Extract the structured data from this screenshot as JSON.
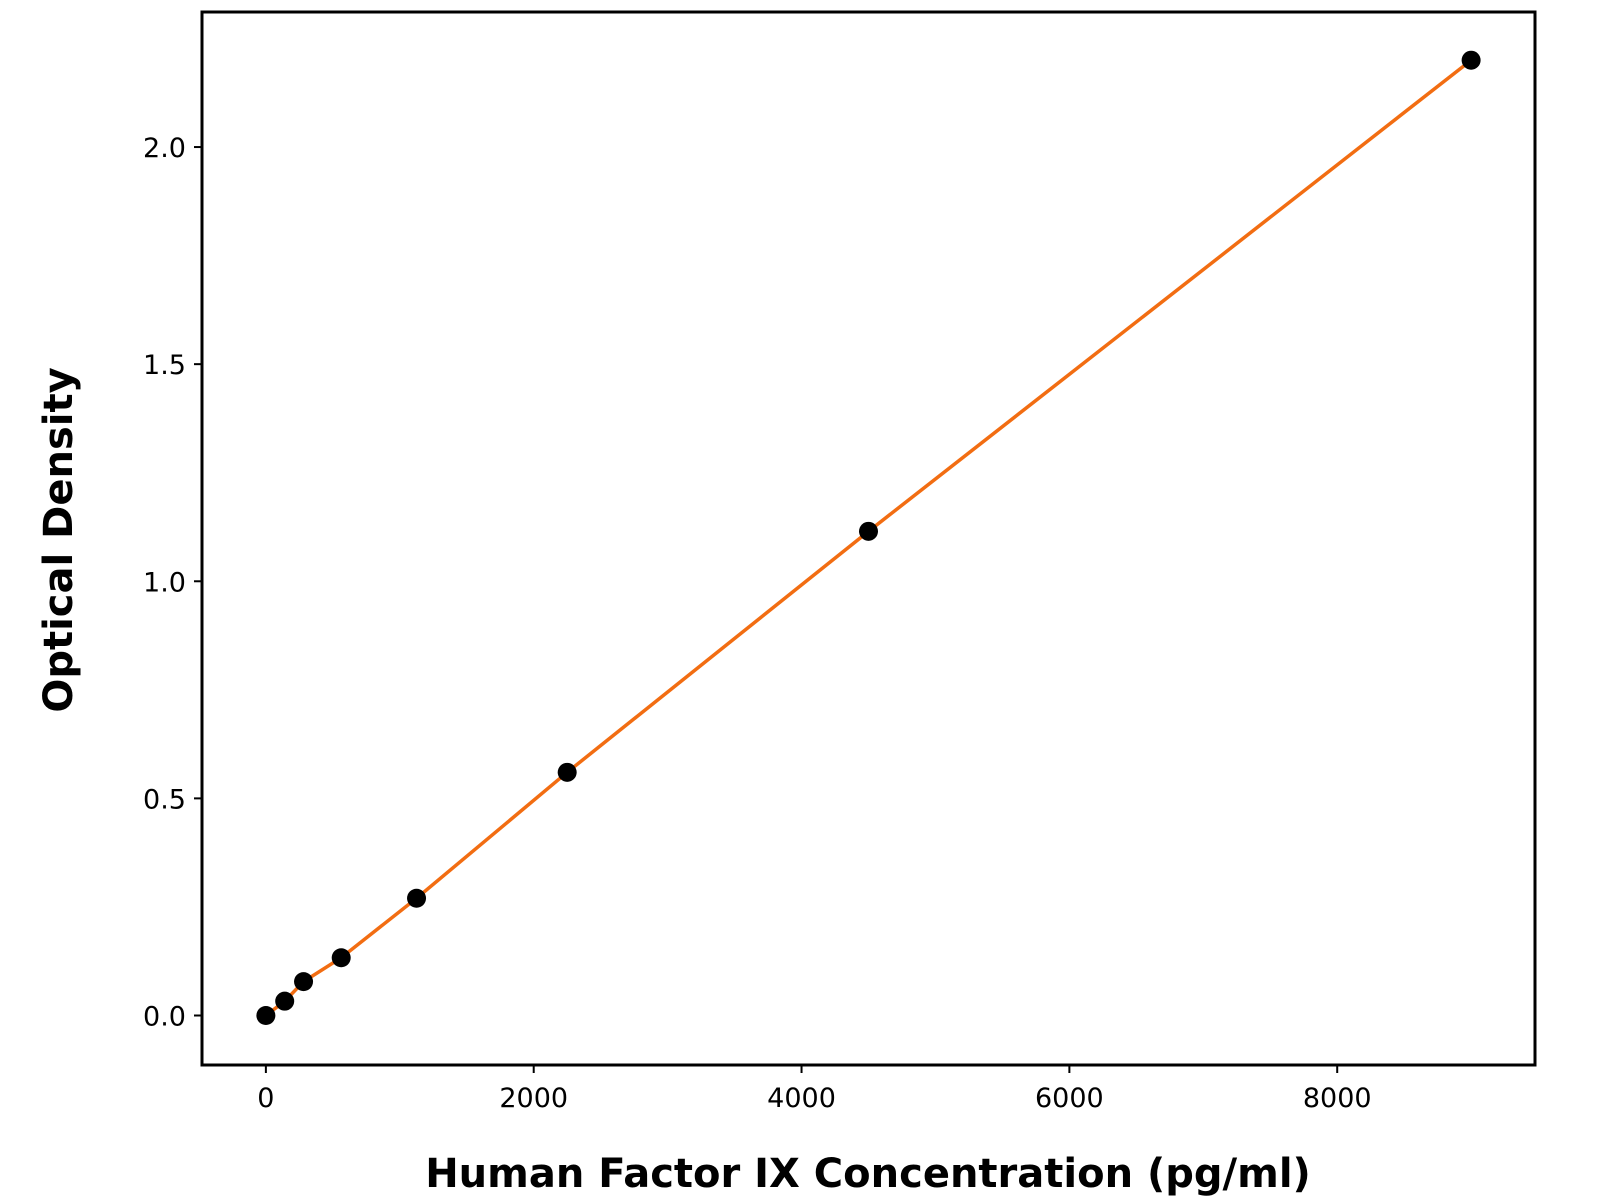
{
  "chart_data": {
    "type": "scatter",
    "xlabel": "Human Factor IX Concentration (pg/ml)",
    "ylabel": "Optical Density",
    "x": [
      0,
      140.6,
      281.25,
      562.5,
      1125,
      2250,
      4500,
      9000
    ],
    "values": [
      0,
      0.033,
      0.078,
      0.133,
      0.27,
      0.56,
      1.115,
      2.2
    ],
    "color": "#000000",
    "line_color": "#f26d12",
    "xlim": [
      -477,
      9477
    ],
    "ylim": [
      -0.114,
      2.311
    ],
    "xticks": [
      0,
      2000,
      4000,
      6000,
      8000
    ],
    "yticks": [
      {
        "value": 0,
        "label": "0.0"
      },
      {
        "value": 0.5,
        "label": "0.5"
      },
      {
        "value": 1,
        "label": "1.0"
      },
      {
        "value": 1.5,
        "label": "1.5"
      },
      {
        "value": 2,
        "label": "2.0"
      }
    ]
  }
}
